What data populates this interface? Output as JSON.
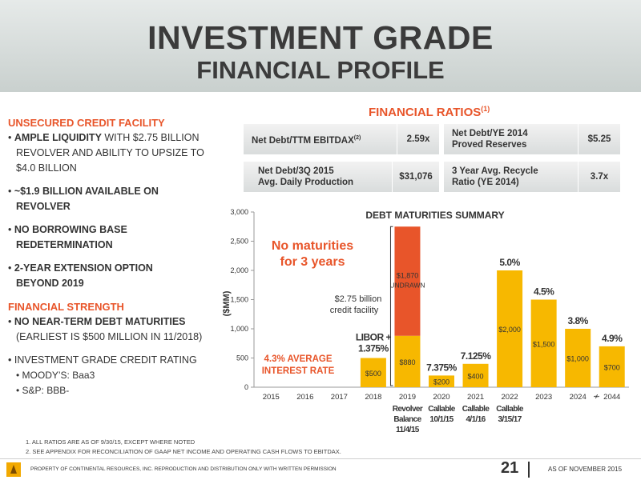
{
  "header": {
    "title_line1": "INVESTMENT GRADE",
    "title_line2": "FINANCIAL PROFILE"
  },
  "left": {
    "section1": "UNSECURED CREDIT FACILITY",
    "items1": [
      {
        "bold": "AMPLE LIQUIDITY",
        "rest": " WITH $2.75 BILLION",
        "line2": "REVOLVER AND ABILITY TO UPSIZE TO",
        "line3": "$4.0 BILLION"
      },
      {
        "bold": "~$1.9 BILLION AVAILABLE ON",
        "line2": "REVOLVER"
      },
      {
        "bold": "NO BORROWING BASE",
        "line2": "REDETERMINATION"
      },
      {
        "bold": "2-YEAR EXTENSION OPTION",
        "line2": "BEYOND 2019"
      }
    ],
    "section2": "FINANCIAL STRENGTH",
    "items2": [
      {
        "bold": "NO NEAR-TERM DEBT MATURITIES",
        "line2": "(EARLIEST IS $500 MILLION IN 11/2018)"
      },
      {
        "bold": "INVESTMENT GRADE CREDIT RATING"
      }
    ],
    "ratings": [
      "MOODY’S: Baa3",
      "S&P: BBB-"
    ],
    "bullet": "•"
  },
  "ratios": {
    "title": "FINANCIAL RATIOS",
    "title_sup": "(1)",
    "boxes": [
      {
        "label": "Net Debt/TTM EBITDAX",
        "sup": "(2)",
        "value": "2.59x"
      },
      {
        "label": "Net Debt/YE 2014",
        "label2": "Proved Reserves",
        "value": "$5.25"
      },
      {
        "label": "Net Debt/3Q 2015",
        "label2": "Avg. Daily Production",
        "value": "$31,076"
      },
      {
        "label": "3 Year Avg. Recycle",
        "label2": "Ratio (YE 2014)",
        "value": "3.7x"
      }
    ]
  },
  "chart_data": {
    "type": "bar",
    "title": "DEBT MATURITIES SUMMARY",
    "ylabel": "($MM)",
    "ylim": [
      0,
      3000
    ],
    "yticks": [
      0,
      500,
      1000,
      1500,
      2000,
      2500,
      3000
    ],
    "ytick_labels": [
      "0",
      "500",
      "1,000",
      "1,500",
      "2,000",
      "2,500",
      "3,000"
    ],
    "categories": [
      "2015",
      "2016",
      "2017",
      "2018",
      "2019",
      "2020",
      "2021",
      "2022",
      "2023",
      "2024",
      "2044"
    ],
    "axis_break_symbol": "≁",
    "series": [
      {
        "name": "",
        "color": "#f7b800",
        "values": [
          0,
          0,
          0,
          500,
          880,
          200,
          400,
          2000,
          1500,
          1000,
          700
        ],
        "labels": [
          "",
          "",
          "",
          "$500",
          "$880",
          "$200",
          "$400",
          "$2,000",
          "$1,500",
          "$1,000",
          "$700"
        ]
      },
      {
        "name": "",
        "color": "#e8552a",
        "values": [
          0,
          0,
          0,
          0,
          1870,
          0,
          0,
          0,
          0,
          0,
          0
        ],
        "labels": [
          "",
          "",
          "",
          "",
          "$1,870",
          "",
          "",
          "",
          "",
          "",
          ""
        ]
      }
    ],
    "undrawn_label": "UNDRAWN",
    "rates": [
      "",
      "",
      "",
      "",
      "",
      "7.375%",
      "7.125%",
      "5.0%",
      "4.5%",
      "3.8%",
      "4.9%"
    ],
    "libor_label": [
      "LIBOR +",
      "1.375%"
    ],
    "annotations": {
      "no_maturities": [
        "No maturities",
        "for 3 years"
      ],
      "avg_rate": [
        "4.3% AVERAGE",
        "INTEREST RATE"
      ],
      "credit_facility": [
        "$2.75 billion",
        "credit facility"
      ]
    },
    "sublabels": [
      {
        "category": "2019",
        "lines": [
          "Revolver",
          "Balance",
          "11/4/15"
        ]
      },
      {
        "category": "2020",
        "lines": [
          "Callable",
          "10/1/15"
        ]
      },
      {
        "category": "2021",
        "lines": [
          "Callable",
          "4/1/16"
        ]
      },
      {
        "category": "2022",
        "lines": [
          "Callable",
          "3/15/17"
        ]
      }
    ],
    "grid": false,
    "legend": "none"
  },
  "footnotes": [
    "1. ALL RATIOS ARE AS OF 9/30/15, EXCEPT WHERE NOTED",
    "2. SEE APPENDIX FOR RECONCILIATION OF GAAP NET INCOME AND OPERATING CASH FLOWS TO EBITDAX."
  ],
  "footer": {
    "text": "PROPERTY OF CONTINENTAL RESOURCES, INC. REPRODUCTION AND DISTRIBUTION ONLY WITH WRITTEN PERMISSION",
    "page": "21",
    "as_of": "AS OF NOVEMBER 2015"
  },
  "colors": {
    "accent": "#e8552a",
    "bar": "#f7b800",
    "text": "#333333"
  }
}
